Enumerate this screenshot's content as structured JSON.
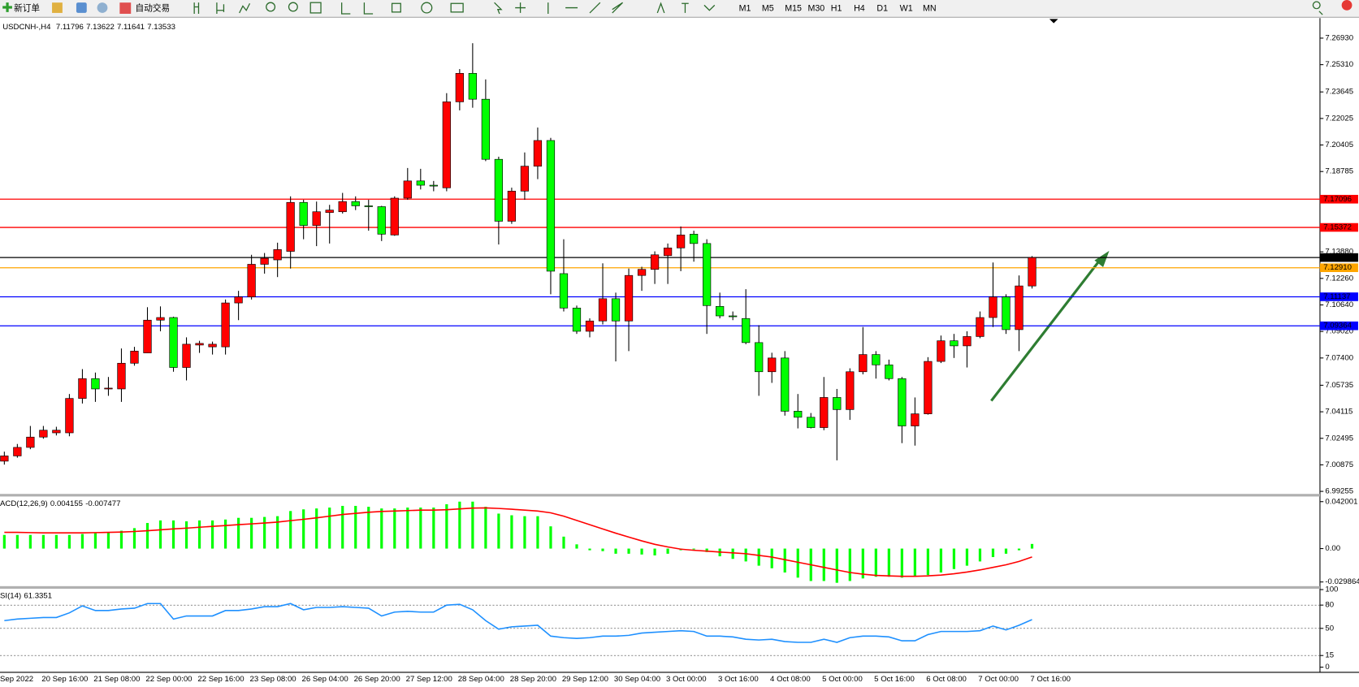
{
  "toolbar": {
    "new_order": "新订单",
    "auto_trading": "自动交易",
    "timeframes": [
      "M1",
      "M5",
      "M15",
      "M30",
      "H1",
      "H4",
      "D1",
      "W1",
      "MN"
    ]
  },
  "chart_data": [
    {
      "type": "candlestick",
      "title": "USDCNH-,H4",
      "first_date_label": "Sep 2022",
      "up_color": "#ff0000",
      "down_color": "#00ff00",
      "categories": [
        null,
        null,
        null,
        "20 Sep 16:00",
        null,
        null,
        null,
        "21 Sep 08:00",
        null,
        null,
        null,
        "22 Sep 00:00",
        null,
        null,
        null,
        "22 Sep 16:00",
        null,
        null,
        null,
        "23 Sep 08:00",
        null,
        null,
        null,
        "26 Sep 04:00",
        null,
        null,
        null,
        "26 Sep 20:00",
        null,
        null,
        null,
        "27 Sep 12:00",
        null,
        null,
        null,
        "28 Sep 04:00",
        null,
        null,
        null,
        "28 Sep 20:00",
        null,
        null,
        null,
        "29 Sep 12:00",
        null,
        null,
        null,
        "30 Sep 04:00",
        null,
        null,
        null,
        "3 Oct 00:00",
        null,
        null,
        null,
        "3 Oct 16:00",
        null,
        null,
        null,
        "4 Oct 08:00",
        null,
        null,
        null,
        "5 Oct 00:00",
        null,
        null,
        null,
        "5 Oct 16:00",
        null,
        null,
        null,
        "6 Oct 08:00",
        null,
        null,
        null,
        "7 Oct 00:00",
        null,
        null,
        null,
        "7 Oct 16:00"
      ],
      "open": [
        7.011,
        7.0142,
        7.0194,
        7.0257,
        7.0283,
        7.0283,
        7.0493,
        7.0614,
        7.0551,
        7.0551,
        7.0708,
        7.0771,
        7.0971,
        7.0987,
        7.0682,
        7.0819,
        7.0808,
        7.0808,
        7.1076,
        7.1113,
        7.1312,
        7.1339,
        7.1391,
        7.169,
        7.1549,
        7.1628,
        7.1633,
        7.1695,
        7.1669,
        7.1664,
        7.1491,
        7.1716,
        7.1821,
        7.1795,
        7.1779,
        7.2304,
        7.2478,
        7.232,
        7.1953,
        7.1575,
        7.1759,
        7.1911,
        7.2068,
        7.1255,
        7.1045,
        7.0903,
        7.0966,
        7.1102,
        7.0966,
        7.1244,
        7.1281,
        7.1365,
        7.1412,
        7.1496,
        7.1439,
        7.1055,
        7.0997,
        7.0981,
        7.0834,
        7.0656,
        7.074,
        7.0415,
        7.0378,
        7.0315,
        7.0499,
        7.0425,
        7.0656,
        7.0761,
        7.0698,
        7.0614,
        7.0325,
        7.0399,
        7.0719,
        7.0845,
        7.0814,
        7.0871,
        7.0987,
        7.1113,
        7.0913,
        7.11796
      ],
      "high": [
        7.0168,
        7.0215,
        7.0325,
        7.0325,
        7.032,
        7.052,
        7.0672,
        7.0651,
        7.0624,
        7.0798,
        7.0808,
        7.105,
        7.1055,
        7.0992,
        7.0866,
        7.0845,
        7.084,
        7.1097,
        7.115,
        7.137,
        7.1381,
        7.1444,
        7.1727,
        7.1706,
        7.1695,
        7.1675,
        7.1748,
        7.1727,
        7.1706,
        7.1669,
        7.1727,
        7.19,
        7.1895,
        7.1821,
        7.2357,
        7.2504,
        7.2662,
        7.2441,
        7.1969,
        7.178,
        7.1995,
        7.2147,
        7.2084,
        7.1465,
        7.106,
        7.0982,
        7.1318,
        7.1139,
        7.1286,
        7.1297,
        7.1391,
        7.1439,
        7.1543,
        7.1517,
        7.1465,
        7.1139,
        7.1024,
        7.116,
        7.094,
        7.0772,
        7.0782,
        7.052,
        7.0404,
        7.0624,
        7.0551,
        7.0677,
        7.0929,
        7.0782,
        7.073,
        7.0624,
        7.0499,
        7.0745,
        7.0877,
        7.0887,
        7.0903,
        7.1024,
        7.1323,
        7.1129,
        7.1244,
        7.13622
      ],
      "low": [
        7.0089,
        7.0131,
        7.0183,
        7.0247,
        7.0267,
        7.0262,
        7.0462,
        7.0472,
        7.0509,
        7.0472,
        7.0693,
        7.0771,
        7.0903,
        7.0656,
        7.0603,
        7.0771,
        7.0761,
        7.0761,
        7.0971,
        7.1097,
        7.1255,
        7.1234,
        7.1286,
        7.1465,
        7.1423,
        7.1439,
        7.1622,
        7.1643,
        7.1517,
        7.1454,
        7.1486,
        7.1706,
        7.1769,
        7.1758,
        7.1758,
        7.2252,
        7.2268,
        7.1942,
        7.1433,
        7.1559,
        7.1706,
        7.1832,
        7.1129,
        7.1024,
        7.0887,
        7.0866,
        7.0945,
        7.0719,
        7.0782,
        7.115,
        7.1192,
        7.1192,
        7.127,
        7.1328,
        7.0887,
        7.0982,
        7.0971,
        7.0824,
        7.0509,
        7.0588,
        7.0388,
        7.031,
        7.031,
        7.0299,
        7.0115,
        7.0362,
        7.064,
        7.0614,
        7.0603,
        7.022,
        7.0205,
        7.0394,
        7.0709,
        7.074,
        7.0682,
        7.0861,
        7.0929,
        7.0887,
        7.0782,
        7.11641
      ],
      "close": [
        7.0142,
        7.0194,
        7.0257,
        7.0299,
        7.0299,
        7.0493,
        7.0614,
        7.0551,
        7.0556,
        7.0708,
        7.0782,
        7.0971,
        7.0987,
        7.0682,
        7.0824,
        7.0829,
        7.0824,
        7.1076,
        7.1113,
        7.1312,
        7.1349,
        7.1402,
        7.169,
        7.1549,
        7.1633,
        7.1643,
        7.1695,
        7.1669,
        7.1664,
        7.1496,
        7.1716,
        7.1821,
        7.1795,
        7.179,
        7.2304,
        7.2478,
        7.232,
        7.1953,
        7.1575,
        7.1759,
        7.1911,
        7.2068,
        7.127,
        7.1045,
        7.0903,
        7.0966,
        7.1102,
        7.0966,
        7.1244,
        7.1281,
        7.137,
        7.1412,
        7.1491,
        7.1439,
        7.106,
        7.0997,
        7.0992,
        7.0834,
        7.0656,
        7.074,
        7.0415,
        7.0378,
        7.0315,
        7.0499,
        7.0425,
        7.0656,
        7.0761,
        7.0698,
        7.0614,
        7.0325,
        7.0399,
        7.0719,
        7.0845,
        7.0814,
        7.0871,
        7.0987,
        7.1113,
        7.0913,
        7.118,
        7.13533
      ],
      "ylim": [
        6.991,
        7.281
      ],
      "yticks": [
        {
          "value": 7.2693,
          "label": "7.26930"
        },
        {
          "value": 7.2531,
          "label": "7.25310"
        },
        7.23645,
        7.22025,
        7.20405,
        7.18785,
        {
          "value": 7.1388,
          "label": "7.13880"
        },
        {
          "value": 7.1226,
          "label": "7.12260"
        },
        {
          "value": 7.1064,
          "label": "7.10640"
        },
        {
          "value": 7.0902,
          "label": "7.09020"
        },
        {
          "value": 7.074,
          "label": "7.07400"
        },
        7.05735,
        7.04115,
        7.02495,
        7.00875,
        6.99255
      ],
      "levels": [
        {
          "value": 7.17096,
          "color": "#ff0000"
        },
        {
          "value": 7.15372,
          "color": "#ff0000"
        },
        {
          "value": 7.13533,
          "color": "#000000"
        },
        {
          "value": 7.1291,
          "label": "7.12910",
          "color": "#ffa500"
        },
        {
          "value": 7.11137,
          "color": "#0000ff"
        },
        {
          "value": 7.09364,
          "color": "#0000ff"
        }
      ]
    },
    {
      "type": "macd",
      "title": "ACD(12,26,9)",
      "series": [
        {
          "color": "#00ff00",
          "values": [
            0.0122,
            0.0122,
            0.0122,
            0.0122,
            0.0122,
            0.0122,
            0.013,
            0.0138,
            0.0145,
            0.016,
            0.0183,
            0.0229,
            0.0252,
            0.0252,
            0.0244,
            0.0252,
            0.0252,
            0.026,
            0.0275,
            0.0275,
            0.0283,
            0.029,
            0.0336,
            0.0351,
            0.0359,
            0.0367,
            0.0382,
            0.0382,
            0.0374,
            0.0359,
            0.0359,
            0.0367,
            0.0367,
            0.0367,
            0.0397,
            0.042,
            0.042,
            0.0374,
            0.0313,
            0.0298,
            0.029,
            0.029,
            0.0199,
            0.0107,
            0.0038,
            -0.0015,
            -0.0023,
            -0.0046,
            -0.0046,
            -0.0053,
            -0.0061,
            -0.0046,
            -0.0015,
            -0.0008,
            -0.0031,
            -0.0069,
            -0.0092,
            -0.0115,
            -0.0153,
            -0.0176,
            -0.0214,
            -0.026,
            -0.029,
            -0.029,
            -0.0306,
            -0.029,
            -0.0267,
            -0.0252,
            -0.0252,
            -0.026,
            -0.0252,
            -0.0237,
            -0.0214,
            -0.0183,
            -0.0153,
            -0.0115,
            -0.0076,
            -0.0046,
            -0.0015,
            0.004155
          ]
        },
        {
          "color": "#ff0000",
          "values": [
            0.0145,
            0.0145,
            0.0143,
            0.0141,
            0.0141,
            0.0141,
            0.0141,
            0.0143,
            0.0145,
            0.0148,
            0.0153,
            0.016,
            0.0168,
            0.0176,
            0.0183,
            0.0191,
            0.0199,
            0.0206,
            0.0214,
            0.0221,
            0.0229,
            0.0237,
            0.025,
            0.0262,
            0.0275,
            0.029,
            0.0305,
            0.0315,
            0.0325,
            0.0332,
            0.0336,
            0.034,
            0.0344,
            0.0344,
            0.0348,
            0.0355,
            0.0362,
            0.0364,
            0.0359,
            0.0352,
            0.0344,
            0.0336,
            0.032,
            0.029,
            0.0252,
            0.0214,
            0.0176,
            0.0138,
            0.0103,
            0.0069,
            0.0038,
            0.0015,
            -0.0005,
            -0.0015,
            -0.0023,
            -0.0031,
            -0.0038,
            -0.0046,
            -0.0061,
            -0.0076,
            -0.0099,
            -0.0122,
            -0.0145,
            -0.0168,
            -0.0191,
            -0.0214,
            -0.0229,
            -0.024,
            -0.0244,
            -0.0248,
            -0.0248,
            -0.0244,
            -0.0237,
            -0.0225,
            -0.021,
            -0.0191,
            -0.0168,
            -0.0145,
            -0.0115,
            -0.007477
          ]
        }
      ],
      "ylim": [
        -0.0336,
        0.0466
      ],
      "yticks": [
        0.042001,
        {
          "value": 0,
          "label": "0.00"
        },
        -0.029864
      ]
    },
    {
      "type": "line",
      "title": "SI(14)",
      "color": "#1e90ff",
      "grid": "dashed",
      "values": [
        60,
        62,
        63,
        64,
        64,
        70,
        79,
        73,
        73,
        75,
        76,
        82,
        82,
        62,
        66,
        66,
        66,
        73,
        73,
        75,
        78,
        78,
        82,
        74,
        77,
        77,
        78,
        77,
        76,
        66,
        71,
        72,
        71,
        71,
        80,
        81,
        74,
        60,
        49,
        52,
        53,
        54,
        40,
        38,
        37,
        38,
        40,
        40,
        41,
        44,
        45,
        46,
        47,
        46,
        40,
        40,
        39,
        36,
        35,
        36,
        33,
        32,
        32,
        36,
        32,
        38,
        40,
        40,
        39,
        34,
        34,
        42,
        46,
        46,
        46,
        47,
        53,
        48,
        54,
        61.3351
      ],
      "ylim": [
        -6.7,
        101.1
      ],
      "yticks": [
        100,
        80,
        50,
        15,
        0
      ]
    }
  ]
}
